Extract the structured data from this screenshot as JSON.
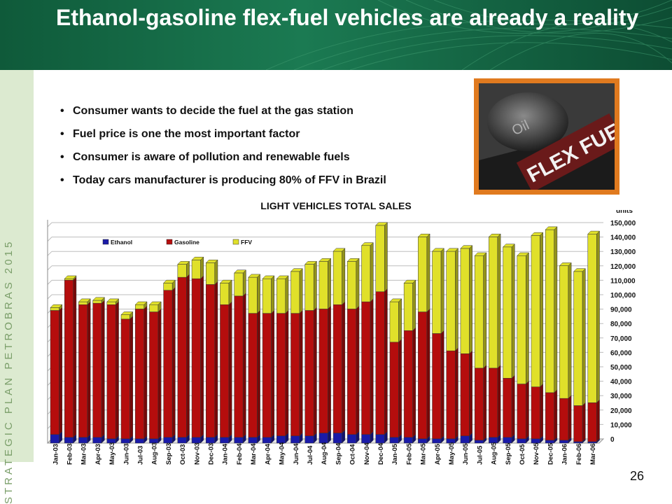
{
  "header": {
    "title": "Ethanol-gasoline flex-fuel vehicles are already a reality"
  },
  "sidebar": {
    "label": "STRATEGIC PLAN PETROBRAS 2015"
  },
  "bullets": [
    "Consumer wants to decide the fuel at the gas station",
    "Fuel price is one the most important factor",
    "Consumer is aware of pollution and renewable fuels",
    "Today cars manufacturer is producing 80% of FFV in Brazil"
  ],
  "photo": {
    "line1": "Oil",
    "line2": "FLEX FUEL"
  },
  "page": {
    "number": "26"
  },
  "colors": {
    "ethanol": "#1a1aa8",
    "gasoline": "#b50d0d",
    "ffv": "#e0e02a",
    "header": "#15674a"
  },
  "chart_data": {
    "type": "bar",
    "stacked": true,
    "title": "LIGHT VEHICLES TOTAL SALES",
    "units_label": "units",
    "ylim": [
      0,
      150000
    ],
    "yticks": [
      0,
      10000,
      20000,
      30000,
      40000,
      50000,
      60000,
      70000,
      80000,
      90000,
      100000,
      110000,
      120000,
      130000,
      140000,
      150000
    ],
    "ytick_labels": [
      "0",
      "10,000",
      "20,000",
      "30,000",
      "40,000",
      "50,000",
      "60,000",
      "70,000",
      "80,000",
      "90,000",
      "100,000",
      "110,000",
      "120,000",
      "130,000",
      "140,000",
      "150,000"
    ],
    "grid": true,
    "legend_position": "top-left",
    "categories": [
      "Jan-03",
      "Feb-03",
      "Mar-03",
      "Apr-03",
      "May-03",
      "Jun-03",
      "Jul-03",
      "Aug-03",
      "Sep-03",
      "Oct-03",
      "Nov-03",
      "Dec-03",
      "Jan-04",
      "Feb-04",
      "Mar-04",
      "Apr-04",
      "May-04",
      "Jun-04",
      "Jul-04",
      "Aug-04",
      "Sep-04",
      "Oct-04",
      "Nov-04",
      "Dec-04",
      "Jan-05",
      "Feb-05",
      "Mar-05",
      "Apr-05",
      "May-05",
      "Jun-05",
      "Jul-05",
      "Aug-05",
      "Sep-05",
      "Oct-05",
      "Nov-05",
      "Dec-05",
      "Jan-06",
      "Feb-06",
      "Mar-06"
    ],
    "series": [
      {
        "name": "Ethanol",
        "color": "#1a1aa8",
        "values": [
          6000,
          4000,
          4000,
          4000,
          3000,
          3000,
          3000,
          3000,
          4000,
          4000,
          4000,
          4000,
          4000,
          4000,
          4000,
          4000,
          5000,
          5000,
          5000,
          7000,
          7000,
          6000,
          6000,
          6000,
          4000,
          4000,
          3000,
          3000,
          3000,
          5000,
          2000,
          4000,
          4000,
          3000,
          3000,
          2000,
          2000,
          1000,
          1000
        ]
      },
      {
        "name": "Gasoline",
        "color": "#b50d0d",
        "values": [
          86000,
          109000,
          92000,
          93000,
          93000,
          83000,
          90000,
          88000,
          102000,
          111000,
          110000,
          106000,
          92000,
          98000,
          86000,
          86000,
          85000,
          85000,
          87000,
          86000,
          89000,
          87000,
          92000,
          99000,
          66000,
          74000,
          88000,
          73000,
          61000,
          57000,
          50000,
          48000,
          41000,
          38000,
          36000,
          33000,
          29000,
          25000,
          27000
        ]
      },
      {
        "name": "FFV",
        "color": "#e0e02a",
        "values": [
          2000,
          1000,
          2000,
          2000,
          2000,
          3000,
          3000,
          5000,
          5000,
          9000,
          13000,
          15000,
          15000,
          16000,
          25000,
          24000,
          24000,
          29000,
          32000,
          33000,
          37000,
          33000,
          39000,
          46000,
          28000,
          33000,
          52000,
          57000,
          69000,
          73000,
          78000,
          91000,
          91000,
          89000,
          105000,
          113000,
          92000,
          93000,
          117000
        ]
      }
    ]
  }
}
